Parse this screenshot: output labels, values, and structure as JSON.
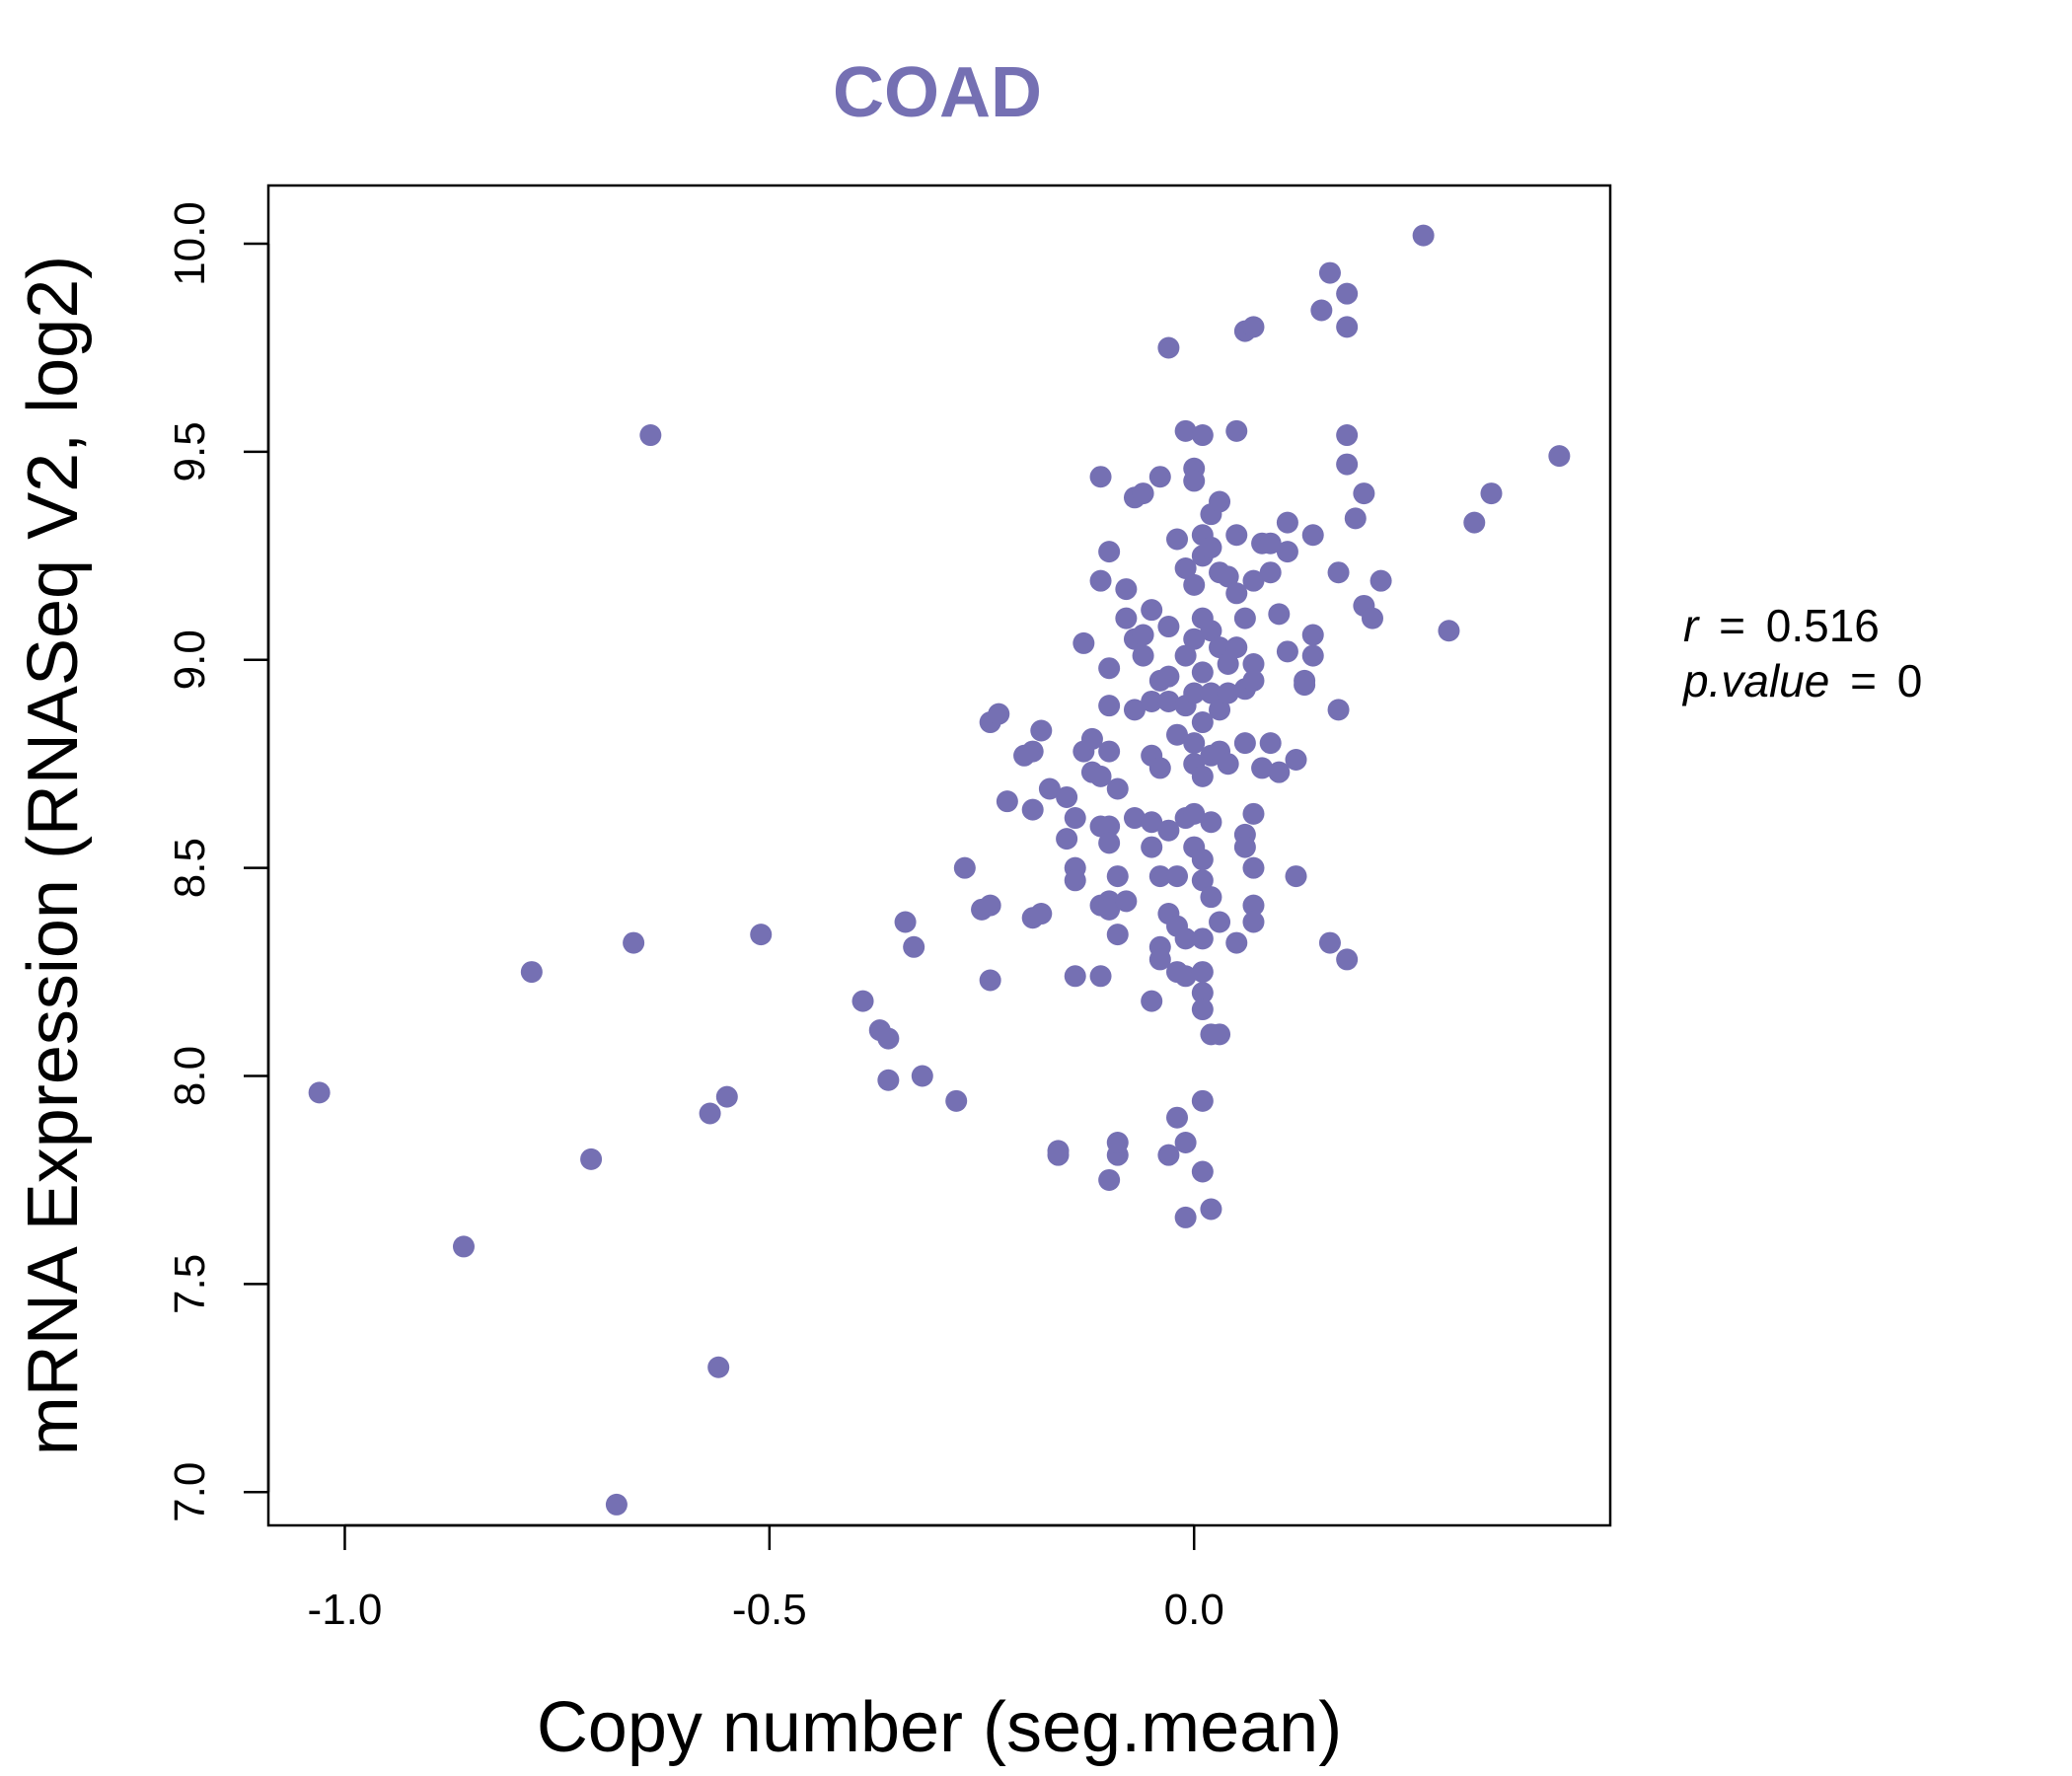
{
  "chart_data": {
    "type": "scatter",
    "title": "COAD",
    "xlabel": "Copy number (seg.mean)",
    "ylabel": "mRNA Expression (RNASeq V2, log2)",
    "xlim": [
      -1.09,
      0.49
    ],
    "ylim": [
      6.92,
      10.14
    ],
    "x_ticks": [
      -1.0,
      -0.5,
      0.0
    ],
    "x_tick_labels": [
      "-1.0",
      "-0.5",
      "0.0"
    ],
    "y_ticks": [
      7.0,
      7.5,
      8.0,
      8.5,
      9.0,
      9.5,
      10.0
    ],
    "y_tick_labels": [
      "7.0",
      "7.5",
      "8.0",
      "8.5",
      "9.0",
      "9.5",
      "10.0"
    ],
    "annotation": {
      "r_label": "r",
      "r_value": "0.516",
      "p_label": "p.value",
      "p_value": "0"
    },
    "point_color": "#7570b3",
    "points": [
      [
        -1.03,
        7.96
      ],
      [
        -0.86,
        7.59
      ],
      [
        -0.78,
        8.25
      ],
      [
        -0.71,
        7.8
      ],
      [
        -0.68,
        6.97
      ],
      [
        -0.66,
        8.32
      ],
      [
        -0.64,
        9.54
      ],
      [
        -0.57,
        7.91
      ],
      [
        -0.56,
        7.3
      ],
      [
        -0.55,
        7.95
      ],
      [
        -0.51,
        8.34
      ],
      [
        -0.39,
        8.18
      ],
      [
        -0.37,
        8.11
      ],
      [
        -0.36,
        8.09
      ],
      [
        -0.36,
        7.99
      ],
      [
        -0.34,
        8.37
      ],
      [
        -0.33,
        8.31
      ],
      [
        -0.32,
        8.0
      ],
      [
        -0.28,
        7.94
      ],
      [
        -0.27,
        8.5
      ],
      [
        -0.25,
        8.4
      ],
      [
        -0.24,
        8.41
      ],
      [
        -0.24,
        8.23
      ],
      [
        -0.24,
        8.85
      ],
      [
        -0.23,
        8.87
      ],
      [
        -0.22,
        8.66
      ],
      [
        -0.2,
        8.77
      ],
      [
        -0.19,
        8.78
      ],
      [
        -0.19,
        8.64
      ],
      [
        -0.19,
        8.38
      ],
      [
        -0.18,
        8.39
      ],
      [
        -0.18,
        8.83
      ],
      [
        -0.17,
        8.69
      ],
      [
        -0.16,
        7.82
      ],
      [
        -0.16,
        7.81
      ],
      [
        -0.15,
        8.67
      ],
      [
        -0.15,
        8.57
      ],
      [
        -0.14,
        8.5
      ],
      [
        -0.14,
        8.47
      ],
      [
        -0.14,
        8.62
      ],
      [
        -0.14,
        8.24
      ],
      [
        -0.13,
        8.78
      ],
      [
        -0.13,
        9.04
      ],
      [
        -0.12,
        8.81
      ],
      [
        -0.12,
        8.73
      ],
      [
        -0.11,
        9.19
      ],
      [
        -0.11,
        9.44
      ],
      [
        -0.11,
        8.72
      ],
      [
        -0.11,
        8.6
      ],
      [
        -0.11,
        8.41
      ],
      [
        -0.11,
        8.24
      ],
      [
        -0.1,
        9.26
      ],
      [
        -0.1,
        8.89
      ],
      [
        -0.1,
        8.78
      ],
      [
        -0.1,
        8.6
      ],
      [
        -0.1,
        8.56
      ],
      [
        -0.1,
        8.42
      ],
      [
        -0.1,
        8.4
      ],
      [
        -0.1,
        7.75
      ],
      [
        -0.1,
        8.98
      ],
      [
        -0.09,
        7.81
      ],
      [
        -0.09,
        7.84
      ],
      [
        -0.09,
        8.34
      ],
      [
        -0.09,
        8.48
      ],
      [
        -0.09,
        8.69
      ],
      [
        -0.08,
        9.17
      ],
      [
        -0.08,
        9.1
      ],
      [
        -0.08,
        8.42
      ],
      [
        -0.07,
        9.39
      ],
      [
        -0.07,
        8.62
      ],
      [
        -0.07,
        8.88
      ],
      [
        -0.07,
        9.05
      ],
      [
        -0.06,
        9.4
      ],
      [
        -0.06,
        9.01
      ],
      [
        -0.06,
        9.06
      ],
      [
        -0.05,
        9.12
      ],
      [
        -0.05,
        8.9
      ],
      [
        -0.05,
        8.77
      ],
      [
        -0.05,
        8.61
      ],
      [
        -0.05,
        8.55
      ],
      [
        -0.05,
        8.18
      ],
      [
        -0.04,
        9.44
      ],
      [
        -0.04,
        8.74
      ],
      [
        -0.04,
        8.95
      ],
      [
        -0.04,
        8.31
      ],
      [
        -0.04,
        8.28
      ],
      [
        -0.04,
        8.48
      ],
      [
        -0.03,
        9.08
      ],
      [
        -0.03,
        8.96
      ],
      [
        -0.03,
        8.9
      ],
      [
        -0.03,
        8.59
      ],
      [
        -0.03,
        8.39
      ],
      [
        -0.03,
        7.81
      ],
      [
        -0.03,
        9.75
      ],
      [
        -0.02,
        9.29
      ],
      [
        -0.02,
        8.82
      ],
      [
        -0.02,
        8.48
      ],
      [
        -0.02,
        8.36
      ],
      [
        -0.02,
        8.25
      ],
      [
        -0.02,
        7.9
      ],
      [
        -0.01,
        9.55
      ],
      [
        -0.01,
        9.22
      ],
      [
        -0.01,
        9.01
      ],
      [
        -0.01,
        8.89
      ],
      [
        -0.01,
        8.62
      ],
      [
        -0.01,
        8.33
      ],
      [
        -0.01,
        8.24
      ],
      [
        -0.01,
        7.84
      ],
      [
        -0.01,
        7.66
      ],
      [
        0.0,
        9.46
      ],
      [
        0.0,
        9.43
      ],
      [
        0.0,
        9.18
      ],
      [
        0.0,
        9.05
      ],
      [
        0.0,
        8.92
      ],
      [
        0.0,
        8.8
      ],
      [
        0.0,
        8.75
      ],
      [
        0.0,
        8.63
      ],
      [
        0.0,
        8.55
      ],
      [
        0.01,
        9.54
      ],
      [
        0.01,
        9.3
      ],
      [
        0.01,
        9.25
      ],
      [
        0.01,
        9.1
      ],
      [
        0.01,
        8.97
      ],
      [
        0.01,
        8.85
      ],
      [
        0.01,
        8.72
      ],
      [
        0.01,
        8.52
      ],
      [
        0.01,
        8.47
      ],
      [
        0.01,
        8.33
      ],
      [
        0.01,
        8.25
      ],
      [
        0.01,
        8.2
      ],
      [
        0.01,
        8.16
      ],
      [
        0.01,
        7.94
      ],
      [
        0.01,
        7.77
      ],
      [
        0.02,
        9.35
      ],
      [
        0.02,
        9.27
      ],
      [
        0.02,
        9.07
      ],
      [
        0.02,
        8.92
      ],
      [
        0.02,
        8.77
      ],
      [
        0.02,
        8.61
      ],
      [
        0.02,
        8.43
      ],
      [
        0.02,
        8.1
      ],
      [
        0.02,
        7.68
      ],
      [
        0.03,
        9.38
      ],
      [
        0.03,
        9.21
      ],
      [
        0.03,
        9.03
      ],
      [
        0.03,
        8.88
      ],
      [
        0.03,
        8.78
      ],
      [
        0.03,
        8.37
      ],
      [
        0.03,
        8.1
      ],
      [
        0.04,
        9.2
      ],
      [
        0.04,
        8.99
      ],
      [
        0.04,
        8.92
      ],
      [
        0.04,
        8.75
      ],
      [
        0.05,
        9.3
      ],
      [
        0.05,
        9.16
      ],
      [
        0.05,
        9.03
      ],
      [
        0.05,
        8.32
      ],
      [
        0.05,
        9.55
      ],
      [
        0.06,
        9.1
      ],
      [
        0.06,
        8.8
      ],
      [
        0.06,
        8.58
      ],
      [
        0.06,
        8.55
      ],
      [
        0.06,
        8.93
      ],
      [
        0.06,
        9.79
      ],
      [
        0.07,
        9.8
      ],
      [
        0.07,
        9.19
      ],
      [
        0.07,
        8.99
      ],
      [
        0.07,
        8.95
      ],
      [
        0.07,
        8.63
      ],
      [
        0.07,
        8.5
      ],
      [
        0.07,
        8.41
      ],
      [
        0.07,
        8.37
      ],
      [
        0.08,
        9.28
      ],
      [
        0.08,
        8.74
      ],
      [
        0.09,
        9.28
      ],
      [
        0.09,
        9.21
      ],
      [
        0.09,
        8.8
      ],
      [
        0.1,
        9.11
      ],
      [
        0.1,
        8.73
      ],
      [
        0.11,
        9.33
      ],
      [
        0.11,
        9.26
      ],
      [
        0.11,
        9.02
      ],
      [
        0.12,
        8.76
      ],
      [
        0.12,
        8.48
      ],
      [
        0.13,
        8.95
      ],
      [
        0.13,
        8.94
      ],
      [
        0.14,
        9.3
      ],
      [
        0.14,
        9.06
      ],
      [
        0.14,
        9.01
      ],
      [
        0.15,
        9.84
      ],
      [
        0.16,
        9.93
      ],
      [
        0.16,
        8.32
      ],
      [
        0.17,
        8.88
      ],
      [
        0.17,
        9.21
      ],
      [
        0.18,
        9.88
      ],
      [
        0.18,
        9.8
      ],
      [
        0.18,
        9.54
      ],
      [
        0.18,
        9.47
      ],
      [
        0.18,
        8.28
      ],
      [
        0.19,
        9.34
      ],
      [
        0.2,
        9.4
      ],
      [
        0.2,
        9.13
      ],
      [
        0.21,
        9.1
      ],
      [
        0.22,
        9.19
      ],
      [
        0.27,
        10.02
      ],
      [
        0.3,
        9.07
      ],
      [
        0.33,
        9.33
      ],
      [
        0.35,
        9.4
      ],
      [
        0.43,
        9.49
      ]
    ]
  }
}
